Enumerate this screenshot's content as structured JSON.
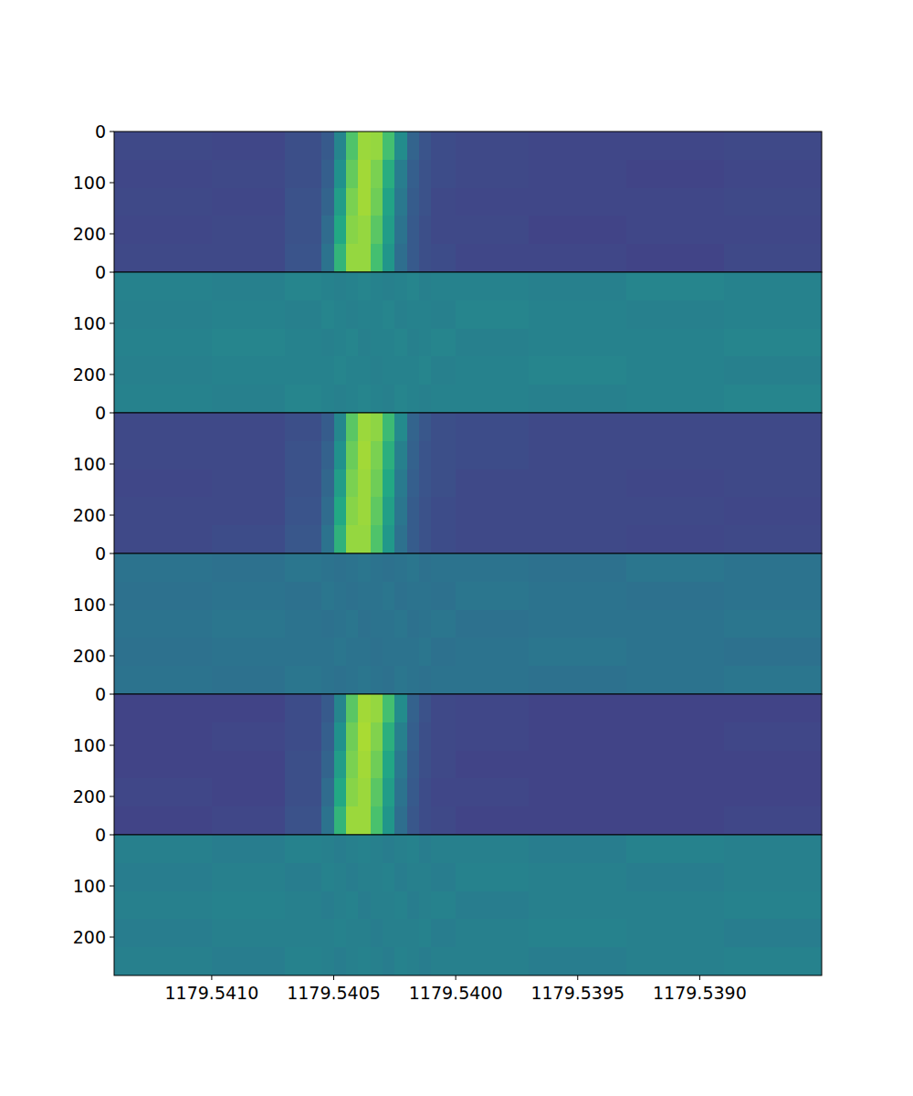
{
  "chart_data": [
    {
      "type": "heatmap",
      "tick_labels": "y",
      "xlim": [
        1179.5414,
        1179.5385
      ],
      "ylim": [
        275,
        0
      ],
      "yticks": [
        0,
        100,
        200
      ],
      "zlim": [
        0,
        1
      ],
      "x_edges": [
        1179.5414,
        1179.541,
        1179.5407,
        1179.54055,
        1179.5405,
        1179.54045,
        1179.5404,
        1179.54035,
        1179.5403,
        1179.54025,
        1179.5402,
        1179.54015,
        1179.5401,
        1179.54,
        1179.5397,
        1179.5393,
        1179.5389,
        1179.5385
      ],
      "y_edges": [
        0,
        55,
        110,
        165,
        220,
        275
      ],
      "cells": [
        [
          0.22,
          0.21,
          0.24,
          0.28,
          0.45,
          0.72,
          0.85,
          0.84,
          0.7,
          0.48,
          0.32,
          0.26,
          0.23,
          0.22,
          0.21,
          0.21,
          0.22
        ],
        [
          0.21,
          0.22,
          0.24,
          0.3,
          0.5,
          0.76,
          0.86,
          0.8,
          0.62,
          0.42,
          0.3,
          0.25,
          0.23,
          0.22,
          0.21,
          0.2,
          0.21
        ],
        [
          0.22,
          0.21,
          0.25,
          0.32,
          0.55,
          0.8,
          0.86,
          0.78,
          0.58,
          0.4,
          0.29,
          0.25,
          0.22,
          0.21,
          0.21,
          0.21,
          0.22
        ],
        [
          0.21,
          0.22,
          0.25,
          0.35,
          0.6,
          0.82,
          0.84,
          0.74,
          0.55,
          0.38,
          0.28,
          0.24,
          0.22,
          0.22,
          0.2,
          0.21,
          0.21
        ],
        [
          0.22,
          0.22,
          0.26,
          0.38,
          0.65,
          0.84,
          0.84,
          0.7,
          0.52,
          0.36,
          0.28,
          0.24,
          0.23,
          0.21,
          0.21,
          0.2,
          0.22
        ]
      ]
    },
    {
      "type": "heatmap",
      "tick_labels": "y",
      "xlim": [
        1179.5414,
        1179.5385
      ],
      "ylim": [
        275,
        0
      ],
      "yticks": [
        0,
        100,
        200
      ],
      "zlim": [
        0,
        1
      ],
      "x_edges": [
        1179.5414,
        1179.541,
        1179.5407,
        1179.54055,
        1179.5405,
        1179.54045,
        1179.5404,
        1179.54035,
        1179.5403,
        1179.54025,
        1179.5402,
        1179.54015,
        1179.5401,
        1179.54,
        1179.5397,
        1179.5393,
        1179.5389,
        1179.5385
      ],
      "y_edges": [
        0,
        55,
        110,
        165,
        220,
        275
      ],
      "cells": [
        [
          0.44,
          0.43,
          0.45,
          0.44,
          0.43,
          0.44,
          0.45,
          0.44,
          0.43,
          0.44,
          0.45,
          0.43,
          0.44,
          0.44,
          0.43,
          0.45,
          0.44
        ],
        [
          0.43,
          0.44,
          0.43,
          0.45,
          0.44,
          0.43,
          0.44,
          0.44,
          0.45,
          0.43,
          0.44,
          0.44,
          0.43,
          0.45,
          0.44,
          0.43,
          0.44
        ],
        [
          0.44,
          0.45,
          0.44,
          0.43,
          0.44,
          0.45,
          0.43,
          0.44,
          0.44,
          0.45,
          0.43,
          0.44,
          0.45,
          0.43,
          0.44,
          0.44,
          0.45
        ],
        [
          0.43,
          0.44,
          0.44,
          0.44,
          0.45,
          0.44,
          0.44,
          0.43,
          0.44,
          0.44,
          0.44,
          0.45,
          0.43,
          0.44,
          0.45,
          0.44,
          0.43
        ],
        [
          0.44,
          0.43,
          0.45,
          0.44,
          0.43,
          0.44,
          0.45,
          0.44,
          0.43,
          0.45,
          0.44,
          0.43,
          0.44,
          0.44,
          0.43,
          0.44,
          0.45
        ]
      ]
    },
    {
      "type": "heatmap",
      "tick_labels": "y",
      "xlim": [
        1179.5414,
        1179.5385
      ],
      "ylim": [
        275,
        0
      ],
      "yticks": [
        0,
        100,
        200
      ],
      "zlim": [
        0,
        1
      ],
      "x_edges": [
        1179.5414,
        1179.541,
        1179.5407,
        1179.54055,
        1179.5405,
        1179.54045,
        1179.5404,
        1179.54035,
        1179.5403,
        1179.54025,
        1179.5402,
        1179.54015,
        1179.5401,
        1179.54,
        1179.5397,
        1179.5393,
        1179.5389,
        1179.5385
      ],
      "y_edges": [
        0,
        55,
        110,
        165,
        220,
        275
      ],
      "cells": [
        [
          0.22,
          0.22,
          0.24,
          0.29,
          0.46,
          0.74,
          0.85,
          0.83,
          0.68,
          0.47,
          0.32,
          0.27,
          0.24,
          0.23,
          0.22,
          0.22,
          0.22
        ],
        [
          0.22,
          0.22,
          0.25,
          0.31,
          0.5,
          0.77,
          0.86,
          0.8,
          0.63,
          0.43,
          0.31,
          0.26,
          0.24,
          0.23,
          0.22,
          0.22,
          0.22
        ],
        [
          0.21,
          0.22,
          0.25,
          0.33,
          0.55,
          0.8,
          0.85,
          0.78,
          0.6,
          0.41,
          0.3,
          0.26,
          0.24,
          0.22,
          0.22,
          0.21,
          0.22
        ],
        [
          0.22,
          0.22,
          0.26,
          0.35,
          0.6,
          0.82,
          0.85,
          0.75,
          0.56,
          0.39,
          0.29,
          0.25,
          0.23,
          0.22,
          0.22,
          0.22,
          0.21
        ],
        [
          0.22,
          0.23,
          0.27,
          0.38,
          0.64,
          0.84,
          0.84,
          0.72,
          0.53,
          0.37,
          0.29,
          0.25,
          0.23,
          0.22,
          0.22,
          0.21,
          0.22
        ]
      ]
    },
    {
      "type": "heatmap",
      "tick_labels": "y",
      "xlim": [
        1179.5414,
        1179.5385
      ],
      "ylim": [
        275,
        0
      ],
      "yticks": [
        0,
        100,
        200
      ],
      "zlim": [
        0,
        1
      ],
      "x_edges": [
        1179.5414,
        1179.541,
        1179.5407,
        1179.54055,
        1179.5405,
        1179.54045,
        1179.5404,
        1179.54035,
        1179.5403,
        1179.54025,
        1179.5402,
        1179.54015,
        1179.5401,
        1179.54,
        1179.5397,
        1179.5393,
        1179.5389,
        1179.5385
      ],
      "y_edges": [
        0,
        55,
        110,
        165,
        220,
        275
      ],
      "cells": [
        [
          0.38,
          0.37,
          0.39,
          0.38,
          0.37,
          0.38,
          0.39,
          0.38,
          0.37,
          0.38,
          0.39,
          0.37,
          0.38,
          0.38,
          0.37,
          0.39,
          0.38
        ],
        [
          0.37,
          0.38,
          0.37,
          0.39,
          0.38,
          0.37,
          0.38,
          0.38,
          0.39,
          0.37,
          0.38,
          0.38,
          0.37,
          0.39,
          0.38,
          0.37,
          0.38
        ],
        [
          0.38,
          0.39,
          0.38,
          0.37,
          0.38,
          0.39,
          0.37,
          0.38,
          0.38,
          0.39,
          0.37,
          0.38,
          0.39,
          0.37,
          0.38,
          0.38,
          0.39
        ],
        [
          0.37,
          0.38,
          0.38,
          0.38,
          0.39,
          0.38,
          0.38,
          0.37,
          0.38,
          0.38,
          0.38,
          0.39,
          0.37,
          0.38,
          0.39,
          0.38,
          0.37
        ],
        [
          0.38,
          0.37,
          0.39,
          0.38,
          0.37,
          0.38,
          0.39,
          0.38,
          0.37,
          0.39,
          0.38,
          0.37,
          0.38,
          0.38,
          0.37,
          0.38,
          0.39
        ]
      ]
    },
    {
      "type": "heatmap",
      "tick_labels": "y",
      "xlim": [
        1179.5414,
        1179.5385
      ],
      "ylim": [
        275,
        0
      ],
      "yticks": [
        0,
        100,
        200
      ],
      "zlim": [
        0,
        1
      ],
      "x_edges": [
        1179.5414,
        1179.541,
        1179.5407,
        1179.54055,
        1179.5405,
        1179.54045,
        1179.5404,
        1179.54035,
        1179.5403,
        1179.54025,
        1179.5402,
        1179.54015,
        1179.5401,
        1179.54,
        1179.5397,
        1179.5393,
        1179.5389,
        1179.5385
      ],
      "y_edges": [
        0,
        55,
        110,
        165,
        220,
        275
      ],
      "cells": [
        [
          0.2,
          0.2,
          0.23,
          0.28,
          0.45,
          0.74,
          0.86,
          0.84,
          0.7,
          0.48,
          0.31,
          0.25,
          0.22,
          0.21,
          0.2,
          0.2,
          0.2
        ],
        [
          0.2,
          0.21,
          0.23,
          0.3,
          0.5,
          0.78,
          0.87,
          0.81,
          0.63,
          0.43,
          0.3,
          0.24,
          0.22,
          0.21,
          0.2,
          0.2,
          0.21
        ],
        [
          0.2,
          0.2,
          0.24,
          0.32,
          0.55,
          0.8,
          0.86,
          0.78,
          0.59,
          0.4,
          0.29,
          0.24,
          0.22,
          0.2,
          0.2,
          0.2,
          0.2
        ],
        [
          0.21,
          0.2,
          0.24,
          0.35,
          0.6,
          0.82,
          0.85,
          0.74,
          0.55,
          0.38,
          0.28,
          0.23,
          0.21,
          0.21,
          0.2,
          0.2,
          0.2
        ],
        [
          0.2,
          0.21,
          0.25,
          0.38,
          0.65,
          0.85,
          0.85,
          0.71,
          0.52,
          0.36,
          0.27,
          0.23,
          0.22,
          0.2,
          0.2,
          0.2,
          0.21
        ]
      ]
    },
    {
      "type": "heatmap",
      "tick_labels": true,
      "xlim": [
        1179.5414,
        1179.5385
      ],
      "ylim": [
        275,
        0
      ],
      "yticks": [
        0,
        100,
        200
      ],
      "zlim": [
        0,
        1
      ],
      "xticks": [
        {
          "value": 1179.541,
          "label": "1179.5410"
        },
        1179.5405,
        {
          "value": 1179.54,
          "label": "1179.5400"
        },
        1179.5395,
        {
          "value": 1179.539,
          "label": "1179.5390"
        }
      ],
      "x_edges": [
        1179.5414,
        1179.541,
        1179.5407,
        1179.54055,
        1179.5405,
        1179.54045,
        1179.5404,
        1179.54035,
        1179.5403,
        1179.54025,
        1179.5402,
        1179.54015,
        1179.5401,
        1179.54,
        1179.5397,
        1179.5393,
        1179.5389,
        1179.5385
      ],
      "y_edges": [
        0,
        55,
        110,
        165,
        220,
        275
      ],
      "cells": [
        [
          0.43,
          0.42,
          0.44,
          0.43,
          0.42,
          0.43,
          0.44,
          0.43,
          0.42,
          0.43,
          0.44,
          0.42,
          0.43,
          0.43,
          0.42,
          0.44,
          0.43
        ],
        [
          0.42,
          0.43,
          0.42,
          0.44,
          0.43,
          0.42,
          0.43,
          0.43,
          0.44,
          0.42,
          0.43,
          0.43,
          0.42,
          0.44,
          0.43,
          0.42,
          0.43
        ],
        [
          0.43,
          0.44,
          0.43,
          0.42,
          0.43,
          0.44,
          0.42,
          0.43,
          0.43,
          0.44,
          0.42,
          0.43,
          0.44,
          0.42,
          0.43,
          0.43,
          0.44
        ],
        [
          0.42,
          0.43,
          0.43,
          0.43,
          0.44,
          0.43,
          0.43,
          0.42,
          0.43,
          0.43,
          0.43,
          0.44,
          0.42,
          0.43,
          0.44,
          0.43,
          0.42
        ],
        [
          0.43,
          0.42,
          0.44,
          0.43,
          0.42,
          0.43,
          0.44,
          0.43,
          0.42,
          0.44,
          0.43,
          0.42,
          0.43,
          0.43,
          0.42,
          0.43,
          0.44
        ]
      ]
    }
  ]
}
